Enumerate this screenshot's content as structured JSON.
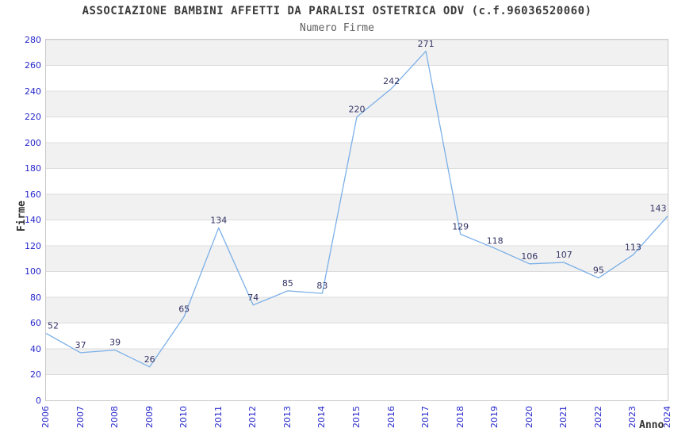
{
  "header": {
    "title": "ASSOCIAZIONE BAMBINI AFFETTI DA PARALISI OSTETRICA ODV (c.f.96036520060)",
    "subtitle": "Numero Firme"
  },
  "chart_data": {
    "type": "line",
    "title": "Numero Firme",
    "x": [
      2006,
      2007,
      2008,
      2009,
      2010,
      2011,
      2012,
      2013,
      2014,
      2015,
      2016,
      2017,
      2018,
      2019,
      2020,
      2021,
      2022,
      2023,
      2024
    ],
    "values": [
      52,
      37,
      39,
      26,
      65,
      134,
      74,
      85,
      83,
      220,
      242,
      271,
      129,
      118,
      106,
      107,
      95,
      113,
      143
    ],
    "xlabel": "Anno",
    "ylabel": "Firme",
    "ylim": [
      0,
      280
    ],
    "ytick_step": 20,
    "grid": true,
    "legend": "none",
    "point_labels": true,
    "band_fill": "alternating horizontal bands, gray on top band"
  },
  "colors": {
    "tick_label": "#2828cc",
    "point_label": "#333366",
    "line": "#7cb0e8",
    "band": "#f1f1f1",
    "grid": "#dcdcdc",
    "plot_border": "#c9c9c9",
    "title": "#3a3a3a",
    "subtitle": "#606060",
    "axis_title": "#333333",
    "background": "#ffffff"
  }
}
